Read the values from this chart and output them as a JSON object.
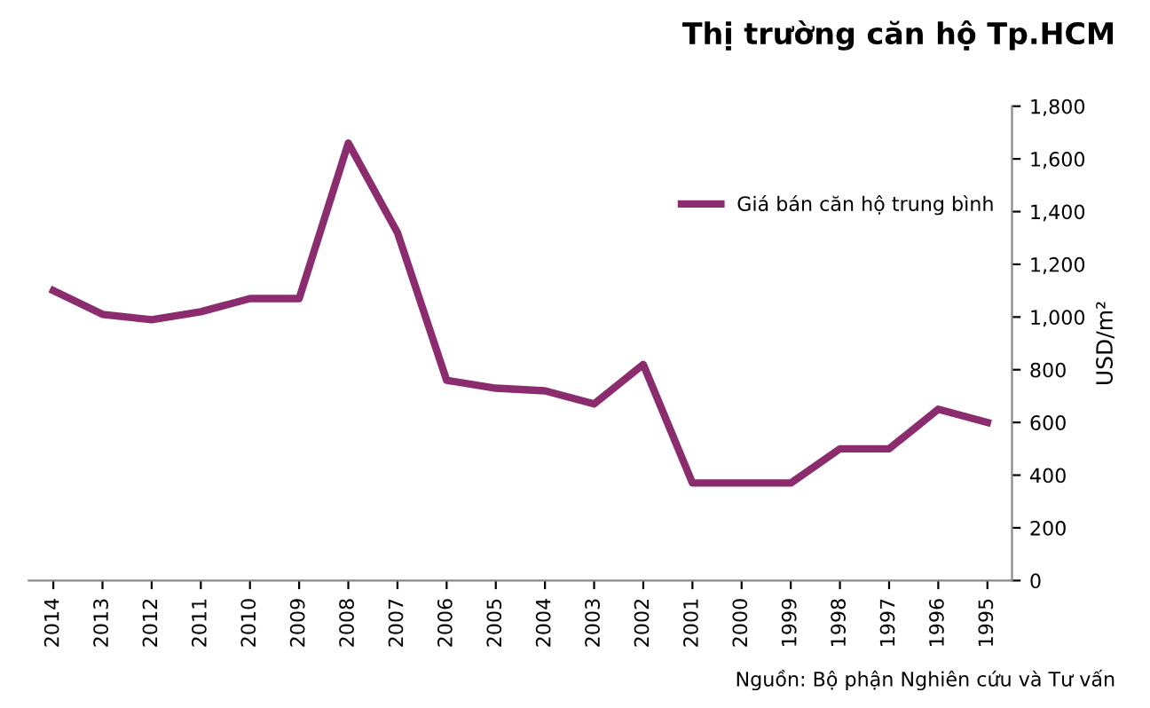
{
  "chart_data": {
    "type": "line",
    "title": "Thị trường căn hộ Tp.HCM",
    "ylabel": "USD/m²",
    "categories": [
      "2014",
      "2013",
      "2012",
      "2011",
      "2010",
      "2009",
      "2008",
      "2007",
      "2006",
      "2005",
      "2004",
      "2003",
      "2002",
      "2001",
      "2000",
      "1999",
      "1998",
      "1997",
      "1996",
      "1995"
    ],
    "series": [
      {
        "name": "Giá bán căn hộ trung bình",
        "color": "#8b2c6e",
        "values": [
          1100,
          1010,
          990,
          1020,
          1070,
          1070,
          1660,
          1320,
          760,
          730,
          720,
          670,
          820,
          370,
          370,
          370,
          500,
          500,
          650,
          600
        ]
      }
    ],
    "ylim": [
      0,
      1800
    ],
    "yticks": [
      0,
      200,
      400,
      600,
      800,
      {
        "value": 1000,
        "label": "1,000"
      },
      {
        "value": 1200,
        "label": "1,200"
      },
      {
        "value": 1400,
        "label": "1,400"
      },
      {
        "value": 1600,
        "label": "1,600"
      },
      {
        "value": 1800,
        "label": "1,800"
      }
    ],
    "grid": false,
    "legend": "top right",
    "marker": "none",
    "annotations": [
      "Nguồn: Bộ phận Nghiên cứu và Tư vấn"
    ]
  }
}
